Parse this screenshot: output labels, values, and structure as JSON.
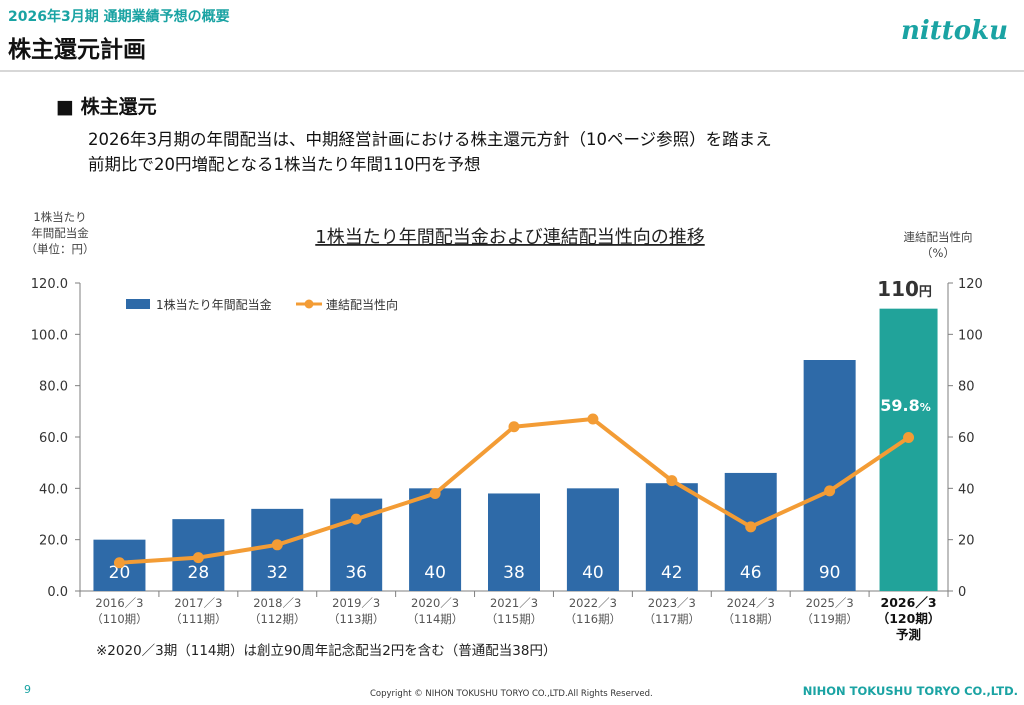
{
  "header": {
    "section": "2026年3月期 通期業績予想の概要",
    "title": "株主還元計画",
    "logo_text": "nittoku"
  },
  "content": {
    "subhead": "■ 株主還元",
    "line1": "2026年3月期の年間配当は、中期経営計画における株主還元方針（10ページ参照）を踏まえ",
    "line2": "前期比で20円増配となる1株当たり年間110円を予想"
  },
  "chart_data": {
    "type": "bar",
    "title": "1株当たり年間配当金および連結配当性向の推移",
    "ylabel_left": [
      "1株当たり",
      "年間配当金",
      "（単位：円）"
    ],
    "ylabel_right": [
      "連結配当性向",
      "（%）"
    ],
    "ylim_left": [
      0,
      120
    ],
    "ylim_right": [
      0,
      120
    ],
    "yticks_left": [
      "0.0",
      "20.0",
      "40.0",
      "60.0",
      "80.0",
      "100.0",
      "120.0"
    ],
    "yticks_right": [
      "0",
      "20",
      "40",
      "60",
      "80",
      "100",
      "120"
    ],
    "categories": [
      [
        "2016／3",
        "（110期）"
      ],
      [
        "2017／3",
        "（111期）"
      ],
      [
        "2018／3",
        "（112期）"
      ],
      [
        "2019／3",
        "（113期）"
      ],
      [
        "2020／3",
        "（114期）"
      ],
      [
        "2021／3",
        "（115期）"
      ],
      [
        "2022／3",
        "（116期）"
      ],
      [
        "2023／3",
        "（117期）"
      ],
      [
        "2024／3",
        "（118期）"
      ],
      [
        "2025／3",
        "（119期）"
      ],
      [
        "2026／3",
        "（120期）",
        "予測"
      ]
    ],
    "series": [
      {
        "name": "1株当たり年間配当金",
        "type": "bar",
        "axis": "left",
        "values": [
          20,
          28,
          32,
          36,
          40,
          38,
          40,
          42,
          46,
          90,
          110
        ],
        "labels": [
          "20",
          "28",
          "32",
          "36",
          "40",
          "38",
          "40",
          "42",
          "46",
          "90",
          ""
        ]
      },
      {
        "name": "連結配当性向",
        "type": "line",
        "axis": "right",
        "values": [
          11,
          13,
          18,
          28,
          38,
          64,
          67,
          43,
          25,
          39,
          59.8
        ]
      }
    ],
    "forecast_value_label": "110",
    "forecast_value_unit": "円",
    "forecast_ratio_label": "59.8",
    "forecast_ratio_unit": "%",
    "footnote": "※2020／3期（114期）は創立90周年記念配当2円を含む（普通配当38円）",
    "legend_position": "top-left",
    "grid": false,
    "colors": {
      "bar": "#2e6aa8",
      "forecast_bar": "#21a39a",
      "line": "#f39c35",
      "axis": "#7f7f7f"
    }
  },
  "footer": {
    "page": "9",
    "copyright": "Copyright © NIHON TOKUSHU TORYO CO.,LTD.All Rights Reserved.",
    "company": "NIHON TOKUSHU TORYO CO.,LTD."
  }
}
